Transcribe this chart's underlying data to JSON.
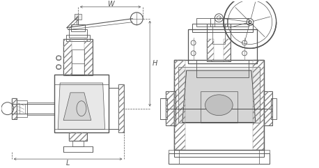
{
  "lc": "#555555",
  "lc2": "#333333",
  "dc": "#555555",
  "hc": "#888888",
  "fig_w": 4.58,
  "fig_h": 2.41,
  "label_W": "W",
  "label_H": "H",
  "label_L": "L"
}
